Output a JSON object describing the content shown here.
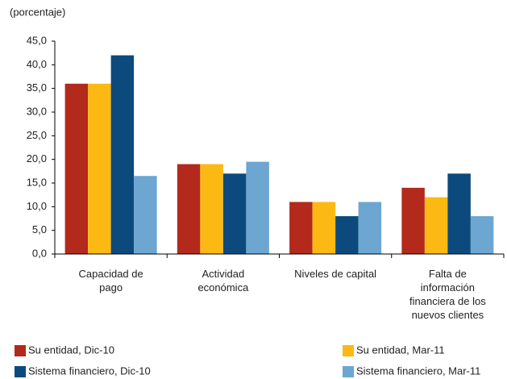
{
  "chart_data": {
    "type": "bar",
    "y_label": "(porcentaje)",
    "categories": [
      "Capacidad de pago",
      "Actividad económica",
      "Niveles de capital",
      "Falta de información financiera de los nuevos clientes"
    ],
    "series": [
      {
        "name": "Su entidad, Dic-10",
        "color": "#b3291b",
        "values": [
          36,
          19,
          11,
          14
        ]
      },
      {
        "name": "Su entidad, Mar-11",
        "color": "#fdb913",
        "values": [
          36,
          19,
          11,
          12
        ]
      },
      {
        "name": "Sistema financiero, Dic-10",
        "color": "#0c4a7d",
        "values": [
          42,
          17,
          8,
          17
        ]
      },
      {
        "name": "Sistema financiero, Mar-11",
        "color": "#6ca6d1",
        "values": [
          16.5,
          19.5,
          11,
          8
        ]
      }
    ],
    "ylim": [
      0,
      45
    ],
    "yticks": [
      {
        "value": 0,
        "label": "0,0"
      },
      {
        "value": 5,
        "label": "5,0"
      },
      {
        "value": 10,
        "label": "10,0"
      },
      {
        "value": 15,
        "label": "15,0"
      },
      {
        "value": 20,
        "label": "20,0"
      },
      {
        "value": 25,
        "label": "25,0"
      },
      {
        "value": 30,
        "label": "30,0"
      },
      {
        "value": 35,
        "label": "35,0"
      },
      {
        "value": 40,
        "label": "40,0"
      },
      {
        "value": 45,
        "label": "45,0"
      }
    ],
    "legend": "bottom"
  }
}
